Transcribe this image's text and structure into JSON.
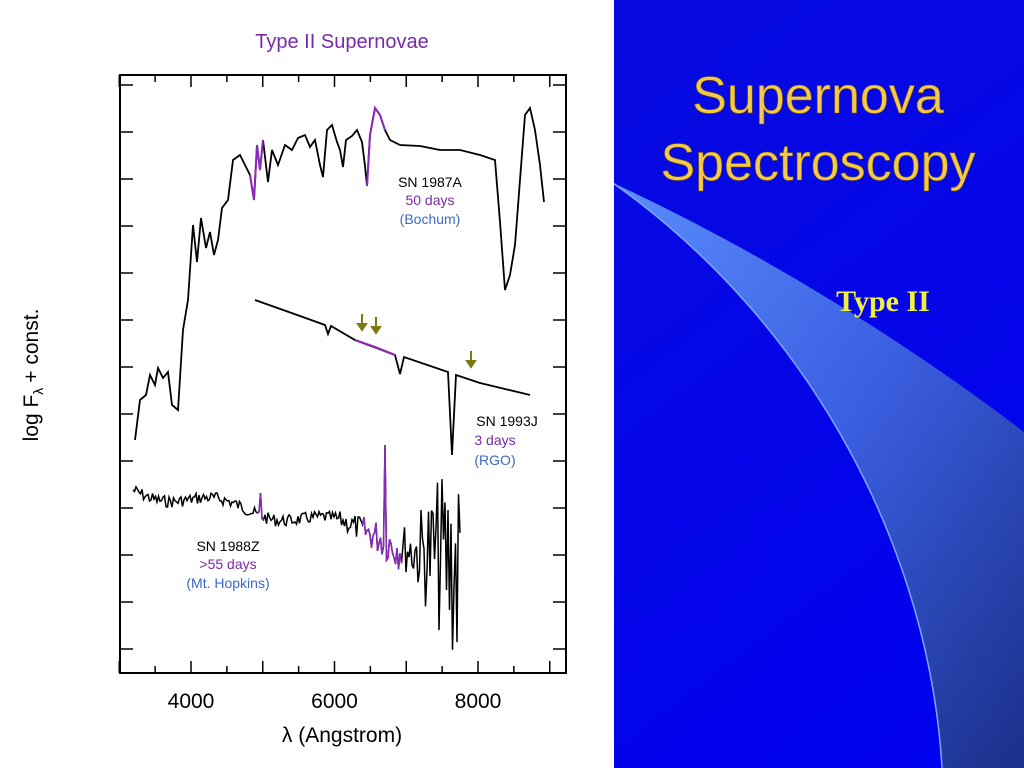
{
  "slide": {
    "title_lines": [
      "Supernova",
      "Spectroscopy"
    ],
    "subtitle": "Type II"
  },
  "figure": {
    "title": "Type II Supernovae",
    "x_label": "λ (Angstrom)",
    "y_label": {
      "main": "log F",
      "sub": "λ",
      "suffix": "+ const."
    },
    "x_tick_labels": [
      "4000",
      "6000",
      "8000"
    ],
    "annotations": [
      {
        "name": "SN 1987A",
        "epoch": "50 days",
        "source": "(Bochum)"
      },
      {
        "name": "SN 1993J",
        "epoch": "3 days",
        "source": "(RGO)"
      },
      {
        "name": "SN 1988Z",
        "epoch": ">55 days",
        "source": "(Mt. Hopkins)"
      }
    ]
  }
}
